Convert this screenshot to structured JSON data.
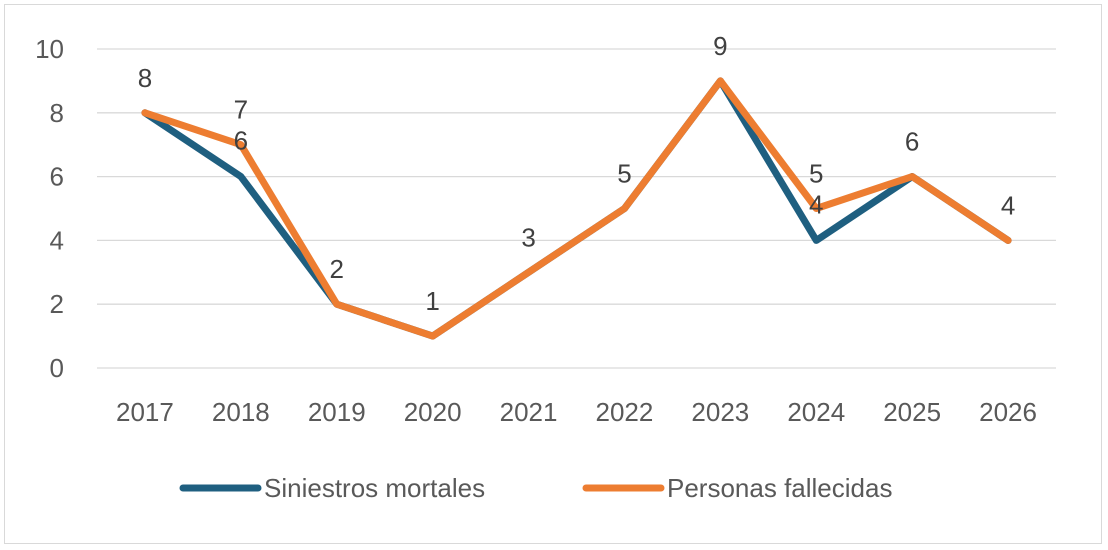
{
  "chart_data": {
    "type": "line",
    "x": [
      "2017",
      "2018",
      "2019",
      "2020",
      "2021",
      "2022",
      "2023",
      "2024",
      "2025",
      "2026"
    ],
    "series": [
      {
        "name": "Siniestros mortales",
        "values": [
          8,
          6,
          2,
          1,
          3,
          5,
          9,
          4,
          6,
          4
        ],
        "color": "#1f5f80"
      },
      {
        "name": "Personas fallecidas",
        "values": [
          8,
          7,
          2,
          1,
          3,
          5,
          9,
          5,
          6,
          4
        ],
        "color": "#ed7d31"
      }
    ],
    "data_labels": [
      {
        "x": "2017",
        "value": "8"
      },
      {
        "x": "2018",
        "value": "7"
      },
      {
        "x": "2018",
        "value": "6"
      },
      {
        "x": "2019",
        "value": "2"
      },
      {
        "x": "2020",
        "value": "1"
      },
      {
        "x": "2021",
        "value": "3"
      },
      {
        "x": "2022",
        "value": "5"
      },
      {
        "x": "2023",
        "value": "9"
      },
      {
        "x": "2024",
        "value": "5"
      },
      {
        "x": "2024",
        "value": "4"
      },
      {
        "x": "2025",
        "value": "6"
      },
      {
        "x": "2026",
        "value": "4"
      }
    ],
    "yticks": [
      "0",
      "2",
      "4",
      "6",
      "8",
      "10"
    ],
    "ylim": [
      0,
      10
    ],
    "grid": true,
    "legend": "bottom"
  }
}
